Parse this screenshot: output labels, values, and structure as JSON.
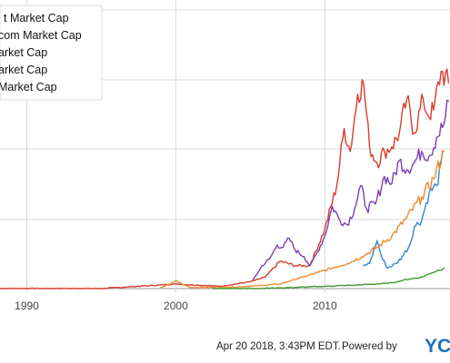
{
  "chart_data": {
    "type": "line",
    "title": "",
    "xlabel": "",
    "ylabel": "",
    "x_ticks": [
      "1990",
      "2000",
      "2010"
    ],
    "grid": true,
    "legend_position": "top-left",
    "series": [
      {
        "name": "t Market Cap",
        "color": "#d93b2b",
        "points": [
          [
            1988,
            0
          ],
          [
            1995,
            0
          ],
          [
            2000,
            0.02
          ],
          [
            2003,
            0.01
          ],
          [
            2005,
            0.03
          ],
          [
            2006,
            0.05
          ],
          [
            2007,
            0.12
          ],
          [
            2008,
            0.1
          ],
          [
            2009,
            0.1
          ],
          [
            2010,
            0.26
          ],
          [
            2010.8,
            0.45
          ],
          [
            2011.3,
            0.7
          ],
          [
            2011.7,
            0.6
          ],
          [
            2012.2,
            0.85
          ],
          [
            2012.6,
            0.9
          ],
          [
            2013.0,
            0.62
          ],
          [
            2013.5,
            0.55
          ],
          [
            2014.0,
            0.6
          ],
          [
            2014.5,
            0.62
          ],
          [
            2015.0,
            0.68
          ],
          [
            2015.5,
            0.83
          ],
          [
            2016.0,
            0.68
          ],
          [
            2016.6,
            0.83
          ],
          [
            2016.9,
            0.76
          ],
          [
            2017.3,
            0.78
          ],
          [
            2017.8,
            0.95
          ],
          [
            2018.3,
            0.9
          ]
        ]
      },
      {
        "name": "com Market Cap",
        "color": "#7b3fb5",
        "points": [
          [
            2005.2,
            0.04
          ],
          [
            2005.8,
            0.1
          ],
          [
            2006.3,
            0.13
          ],
          [
            2006.8,
            0.19
          ],
          [
            2007.2,
            0.18
          ],
          [
            2007.6,
            0.22
          ],
          [
            2008.0,
            0.17
          ],
          [
            2008.6,
            0.14
          ],
          [
            2009.0,
            0.1
          ],
          [
            2009.5,
            0.16
          ],
          [
            2010.0,
            0.23
          ],
          [
            2010.5,
            0.36
          ],
          [
            2011.0,
            0.3
          ],
          [
            2011.5,
            0.28
          ],
          [
            2012.0,
            0.35
          ],
          [
            2012.4,
            0.45
          ],
          [
            2012.8,
            0.35
          ],
          [
            2013.4,
            0.37
          ],
          [
            2014.0,
            0.49
          ],
          [
            2014.5,
            0.46
          ],
          [
            2015.0,
            0.56
          ],
          [
            2015.5,
            0.52
          ],
          [
            2016.0,
            0.55
          ],
          [
            2016.5,
            0.6
          ],
          [
            2017.0,
            0.58
          ],
          [
            2017.5,
            0.66
          ],
          [
            2018.0,
            0.72
          ],
          [
            2018.3,
            0.82
          ]
        ]
      },
      {
        "name": "arket Cap",
        "color": "#2f86d6",
        "points": [
          [
            2012.6,
            0.1
          ],
          [
            2013.0,
            0.11
          ],
          [
            2013.5,
            0.21
          ],
          [
            2013.8,
            0.14
          ],
          [
            2014.2,
            0.09
          ],
          [
            2014.8,
            0.11
          ],
          [
            2015.2,
            0.14
          ],
          [
            2015.7,
            0.19
          ],
          [
            2016.0,
            0.27
          ],
          [
            2016.5,
            0.3
          ],
          [
            2017.0,
            0.42
          ],
          [
            2017.5,
            0.45
          ],
          [
            2018.0,
            0.6
          ]
        ]
      },
      {
        "name": "arket Cap",
        "color": "#ef8a2e",
        "points": [
          [
            1999.0,
            0.005
          ],
          [
            1999.6,
            0.02
          ],
          [
            2000.0,
            0.035
          ],
          [
            2000.4,
            0.02
          ],
          [
            2001.0,
            0.005
          ],
          [
            2003.0,
            0.005
          ],
          [
            2005.0,
            0.01
          ],
          [
            2007.0,
            0.02
          ],
          [
            2008.5,
            0.05
          ],
          [
            2009.5,
            0.07
          ],
          [
            2010.5,
            0.09
          ],
          [
            2011.5,
            0.11
          ],
          [
            2012.5,
            0.14
          ],
          [
            2013.5,
            0.18
          ],
          [
            2014.5,
            0.23
          ],
          [
            2015.5,
            0.31
          ],
          [
            2016.5,
            0.4
          ],
          [
            2017.3,
            0.48
          ],
          [
            2018.0,
            0.6
          ]
        ]
      },
      {
        "name": "Market Cap",
        "color": "#3c9a2d",
        "points": [
          [
            2002.5,
            0.0
          ],
          [
            2005.0,
            0.0
          ],
          [
            2008.0,
            0.005
          ],
          [
            2010.0,
            0.01
          ],
          [
            2012.0,
            0.015
          ],
          [
            2013.5,
            0.02
          ],
          [
            2014.5,
            0.025
          ],
          [
            2015.5,
            0.04
          ],
          [
            2016.5,
            0.05
          ],
          [
            2017.2,
            0.07
          ],
          [
            2018.0,
            0.09
          ]
        ]
      }
    ]
  },
  "footer": {
    "timestamp": "Apr 20 2018, 3:43PM EDT.",
    "powered_by": "Powered by",
    "brand": "YC"
  }
}
